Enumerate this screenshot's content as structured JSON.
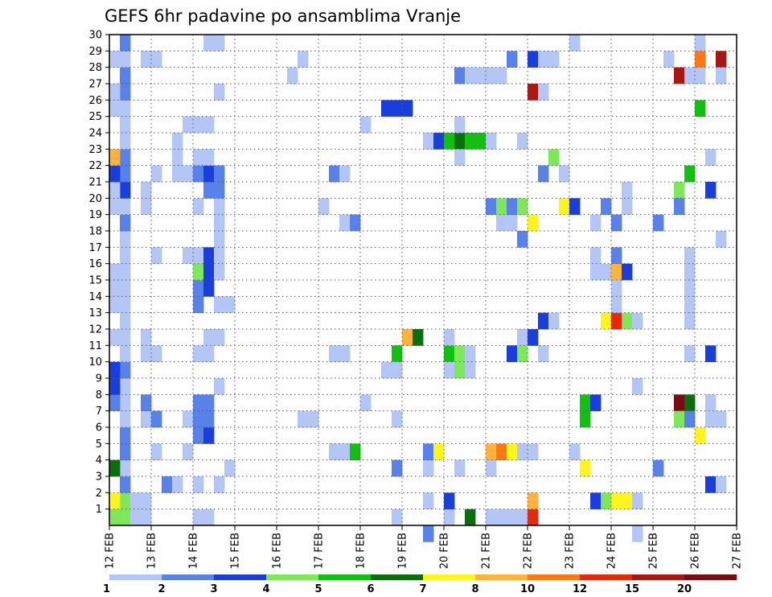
{
  "chart_data": {
    "type": "heatmap",
    "title": "GEFS 6hr padavine po ansamblima Vranje",
    "xlabel": "",
    "ylabel": "",
    "x_tick_labels": [
      "12 FEB",
      "13 FEB",
      "14 FEB",
      "15 FEB",
      "16 FEB",
      "17 FEB",
      "18 FEB",
      "19 FEB",
      "20 FEB",
      "21 FEB",
      "22 FEB",
      "23 FEB",
      "24 FEB",
      "25 FEB",
      "26 FEB",
      "27 FEB"
    ],
    "y_tick_labels": [
      "1",
      "2",
      "3",
      "4",
      "5",
      "6",
      "7",
      "8",
      "9",
      "10",
      "11",
      "12",
      "13",
      "14",
      "15",
      "16",
      "17",
      "18",
      "19",
      "20",
      "21",
      "22",
      "23",
      "24",
      "25",
      "26",
      "27",
      "28",
      "29",
      "30"
    ],
    "xlim": [
      0,
      15
    ],
    "ylim": [
      0,
      30
    ],
    "time_step_hours": 6,
    "grid": "dotted",
    "colorbar": {
      "position": "bottom",
      "labels": [
        "1",
        "2",
        "3",
        "4",
        "5",
        "6",
        "7",
        "8",
        "10",
        "12",
        "15",
        "20"
      ],
      "colors": [
        "#b4c6f5",
        "#5882ea",
        "#1a3ede",
        "#7ee85a",
        "#12c012",
        "#0a6f0a",
        "#fff51e",
        "#ffb23c",
        "#ff7814",
        "#e8280a",
        "#a81812",
        "#780e12"
      ]
    },
    "cells": [
      [
        1,
        0.5,
        4
      ],
      [
        1,
        0.5,
        3
      ],
      [
        1,
        1.5,
        3
      ],
      [
        1,
        2.5,
        1
      ],
      [
        1,
        3.5,
        0
      ],
      [
        1,
        4.5,
        1
      ],
      [
        1,
        5.5,
        1
      ],
      [
        1,
        6.5,
        0
      ],
      [
        1,
        7.5,
        0
      ],
      [
        1,
        8.5,
        0
      ],
      [
        1,
        9.5,
        1
      ],
      [
        1,
        10.5,
        0
      ],
      [
        1,
        11.5,
        0
      ],
      [
        1,
        12.5,
        0
      ],
      [
        1,
        13.5,
        0
      ],
      [
        1,
        14.5,
        0
      ],
      [
        1,
        15.5,
        0
      ],
      [
        1,
        16.5,
        0
      ],
      [
        1,
        17.5,
        0
      ],
      [
        1,
        18.5,
        1
      ],
      [
        1,
        19.5,
        0
      ],
      [
        1,
        20.5,
        2
      ],
      [
        1,
        21.5,
        1
      ],
      [
        1,
        22.5,
        1
      ],
      [
        1,
        23.5,
        0
      ],
      [
        1,
        24.5,
        0
      ],
      [
        1,
        25.5,
        0
      ],
      [
        1,
        26.5,
        1
      ],
      [
        1,
        27.5,
        1
      ],
      [
        1,
        28.5,
        0
      ],
      [
        1,
        29.5,
        1
      ],
      [
        0,
        1.5,
        6
      ],
      [
        0,
        0.5,
        3
      ],
      [
        0,
        3.5,
        5
      ],
      [
        0,
        7.5,
        1
      ],
      [
        0,
        8.5,
        2
      ],
      [
        0,
        9.5,
        2
      ],
      [
        0,
        11.5,
        0
      ],
      [
        0,
        13.5,
        0
      ],
      [
        0,
        14.5,
        0
      ],
      [
        0,
        15.5,
        0
      ],
      [
        0,
        19.5,
        0
      ],
      [
        0,
        20.5,
        0
      ],
      [
        0,
        21.5,
        2
      ],
      [
        0,
        22.5,
        7
      ],
      [
        0,
        26.5,
        0
      ],
      [
        0,
        28.5,
        0
      ],
      [
        0,
        25.5,
        0
      ],
      [
        2,
        0.5,
        0
      ],
      [
        2,
        1.5,
        0
      ],
      [
        3,
        0.5,
        0
      ],
      [
        3,
        1.5,
        0
      ],
      [
        3,
        6.5,
        0
      ],
      [
        3,
        7.5,
        1
      ],
      [
        3,
        10.5,
        0
      ],
      [
        3,
        11.5,
        0
      ],
      [
        3,
        19.5,
        0
      ],
      [
        3,
        20.5,
        0
      ],
      [
        3,
        28.5,
        0
      ],
      [
        4,
        4.5,
        0
      ],
      [
        4,
        6.5,
        1
      ],
      [
        4,
        21.5,
        0
      ],
      [
        4,
        10.5,
        0
      ],
      [
        4,
        16.5,
        0
      ],
      [
        4,
        28.5,
        0
      ],
      [
        5,
        2.5,
        1
      ],
      [
        6,
        2.5,
        0
      ],
      [
        6,
        21.5,
        0
      ],
      [
        6,
        22.5,
        0
      ],
      [
        6,
        23.5,
        0
      ],
      [
        7,
        21.5,
        0
      ],
      [
        7,
        4.5,
        0
      ],
      [
        7,
        6.5,
        0
      ],
      [
        7,
        16.5,
        0
      ],
      [
        7,
        24.5,
        0
      ],
      [
        8,
        0.5,
        0
      ],
      [
        8,
        2.5,
        0
      ],
      [
        8,
        5.5,
        1
      ],
      [
        8,
        6.5,
        1
      ],
      [
        8,
        7.5,
        1
      ],
      [
        8,
        13.5,
        1
      ],
      [
        8,
        14.5,
        1
      ],
      [
        8,
        15.5,
        3
      ],
      [
        8,
        10.5,
        0
      ],
      [
        8,
        16.5,
        0
      ],
      [
        8,
        19.5,
        0
      ],
      [
        8,
        21.5,
        1
      ],
      [
        8,
        22.5,
        0
      ],
      [
        8,
        24.5,
        0
      ],
      [
        9,
        0.5,
        0
      ],
      [
        9,
        5.5,
        2
      ],
      [
        9,
        6.5,
        1
      ],
      [
        9,
        7.5,
        1
      ],
      [
        9,
        10.5,
        0
      ],
      [
        9,
        11.5,
        0
      ],
      [
        9,
        14.5,
        2
      ],
      [
        9,
        15.5,
        2
      ],
      [
        9,
        16.5,
        2
      ],
      [
        9,
        20.5,
        1
      ],
      [
        9,
        21.5,
        2
      ],
      [
        9,
        22.5,
        0
      ],
      [
        9,
        24.5,
        0
      ],
      [
        9,
        29.5,
        0
      ],
      [
        10,
        2.5,
        0
      ],
      [
        10,
        8.5,
        0
      ],
      [
        10,
        11.5,
        0
      ],
      [
        10,
        13.5,
        0
      ],
      [
        10,
        15.5,
        0
      ],
      [
        10,
        16.5,
        0
      ],
      [
        10,
        17.5,
        0
      ],
      [
        10,
        18.5,
        0
      ],
      [
        10,
        19.5,
        0
      ],
      [
        10,
        20.5,
        1
      ],
      [
        10,
        21.5,
        1
      ],
      [
        10,
        26.5,
        0
      ],
      [
        10,
        29.5,
        0
      ],
      [
        11,
        3.5,
        0
      ],
      [
        11,
        13.5,
        0
      ],
      [
        17,
        27.5,
        0
      ],
      [
        18,
        6.5,
        0
      ],
      [
        18,
        28.5,
        0
      ],
      [
        19,
        6.5,
        0
      ],
      [
        20,
        19.5,
        0
      ],
      [
        21,
        4.5,
        0
      ],
      [
        21,
        10.5,
        0
      ],
      [
        21,
        21.5,
        1
      ],
      [
        22,
        4.5,
        0
      ],
      [
        22,
        10.5,
        0
      ],
      [
        22,
        18.5,
        0
      ],
      [
        22,
        21.5,
        0
      ],
      [
        23,
        4.5,
        4
      ],
      [
        23,
        18.5,
        1
      ],
      [
        24,
        7.5,
        0
      ],
      [
        24,
        24.5,
        0
      ],
      [
        26,
        9.5,
        0
      ],
      [
        26,
        25.5,
        2
      ],
      [
        27,
        10.5,
        4
      ],
      [
        27,
        25.5,
        2
      ],
      [
        27,
        0.5,
        0
      ],
      [
        27,
        3.5,
        1
      ],
      [
        27,
        9.5,
        0
      ],
      [
        27,
        6.5,
        0
      ],
      [
        28,
        11.5,
        7
      ],
      [
        28,
        25.5,
        2
      ],
      [
        29,
        11.5,
        5
      ],
      [
        30,
        1.5,
        0
      ],
      [
        30,
        3.5,
        0
      ],
      [
        30,
        23.5,
        0
      ],
      [
        30,
        4.5,
        1
      ],
      [
        30,
        -0.5,
        1
      ],
      [
        31,
        4.5,
        6
      ],
      [
        31,
        23.5,
        2
      ],
      [
        32,
        0.5,
        0
      ],
      [
        32,
        1.5,
        2
      ],
      [
        32,
        10.5,
        4
      ],
      [
        32,
        9.5,
        0
      ],
      [
        32,
        11.5,
        0
      ],
      [
        32,
        23.5,
        4
      ],
      [
        33,
        3.5,
        0
      ],
      [
        33,
        9.5,
        3
      ],
      [
        33,
        10.5,
        3
      ],
      [
        33,
        23.5,
        5
      ],
      [
        33,
        22.5,
        0
      ],
      [
        33,
        24.5,
        0
      ],
      [
        33,
        27.5,
        1
      ],
      [
        34,
        0.5,
        5
      ],
      [
        34,
        23.5,
        4
      ],
      [
        34,
        9.5,
        0
      ],
      [
        34,
        10.5,
        0
      ],
      [
        34,
        27.5,
        0
      ],
      [
        35,
        23.5,
        4
      ],
      [
        35,
        27.5,
        0
      ],
      [
        36,
        3.5,
        0
      ],
      [
        36,
        0.5,
        0
      ],
      [
        36,
        4.5,
        7
      ],
      [
        36,
        19.5,
        1
      ],
      [
        36,
        23.5,
        0
      ],
      [
        36,
        27.5,
        0
      ],
      [
        37,
        4.5,
        8
      ],
      [
        37,
        0.5,
        0
      ],
      [
        37,
        18.5,
        0
      ],
      [
        37,
        19.5,
        3
      ],
      [
        37,
        27.5,
        0
      ],
      [
        38,
        4.5,
        6
      ],
      [
        38,
        0.5,
        0
      ],
      [
        38,
        10.5,
        2
      ],
      [
        38,
        18.5,
        0
      ],
      [
        38,
        19.5,
        1
      ],
      [
        38,
        28.5,
        1
      ],
      [
        39,
        0.5,
        0
      ],
      [
        39,
        11.5,
        0
      ],
      [
        39,
        4.5,
        0
      ],
      [
        39,
        10.5,
        3
      ],
      [
        39,
        17.5,
        1
      ],
      [
        39,
        19.5,
        3
      ],
      [
        39,
        23.5,
        0
      ],
      [
        40,
        0.5,
        9
      ],
      [
        40,
        1.5,
        7
      ],
      [
        40,
        4.5,
        0
      ],
      [
        40,
        11.5,
        2
      ],
      [
        40,
        18.5,
        6
      ],
      [
        40,
        26.5,
        10
      ],
      [
        40,
        28.5,
        2
      ],
      [
        41,
        10.5,
        0
      ],
      [
        41,
        12.5,
        2
      ],
      [
        41,
        26.5,
        0
      ],
      [
        41,
        21.5,
        1
      ],
      [
        41,
        28.5,
        0
      ],
      [
        42,
        12.5,
        0
      ],
      [
        42,
        22.5,
        3
      ],
      [
        42,
        28.5,
        0
      ],
      [
        43,
        19.5,
        6
      ],
      [
        43,
        21.5,
        0
      ],
      [
        44,
        4.5,
        0
      ],
      [
        44,
        19.5,
        2
      ],
      [
        44,
        29.5,
        0
      ],
      [
        45,
        7.5,
        4
      ],
      [
        45,
        6.5,
        4
      ],
      [
        45,
        3.5,
        6
      ],
      [
        46,
        7.5,
        2
      ],
      [
        46,
        16.5,
        0
      ],
      [
        46,
        1.5,
        2
      ],
      [
        46,
        15.5,
        0
      ],
      [
        46,
        18.5,
        0
      ],
      [
        47,
        1.5,
        3
      ],
      [
        47,
        15.5,
        0
      ],
      [
        47,
        19.5,
        1
      ],
      [
        47,
        12.5,
        6
      ],
      [
        48,
        12.5,
        9
      ],
      [
        48,
        15.5,
        7
      ],
      [
        48,
        18.5,
        1
      ],
      [
        48,
        16.5,
        1
      ],
      [
        48,
        13.5,
        0
      ],
      [
        48,
        14.5,
        0
      ],
      [
        48,
        1.5,
        6
      ],
      [
        49,
        1.5,
        6
      ],
      [
        49,
        12.5,
        3
      ],
      [
        49,
        15.5,
        2
      ],
      [
        49,
        19.5,
        0
      ],
      [
        49,
        20.5,
        0
      ],
      [
        50,
        12.5,
        0
      ],
      [
        50,
        1.5,
        0
      ],
      [
        50,
        8.5,
        0
      ],
      [
        50,
        -0.5,
        0
      ],
      [
        52,
        3.5,
        1
      ],
      [
        52,
        18.5,
        1
      ],
      [
        53,
        28.5,
        0
      ],
      [
        54,
        7.5,
        11
      ],
      [
        54,
        6.5,
        3
      ],
      [
        54,
        20.5,
        3
      ],
      [
        54,
        19.5,
        1
      ],
      [
        54,
        27.5,
        10
      ],
      [
        55,
        7.5,
        5
      ],
      [
        55,
        6.5,
        1
      ],
      [
        55,
        10.5,
        0
      ],
      [
        55,
        21.5,
        4
      ],
      [
        55,
        13.5,
        0
      ],
      [
        55,
        12.5,
        0
      ],
      [
        55,
        14.5,
        0
      ],
      [
        55,
        15.5,
        0
      ],
      [
        55,
        16.5,
        0
      ],
      [
        55,
        27.5,
        0
      ],
      [
        56,
        5.5,
        6
      ],
      [
        56,
        25.5,
        4
      ],
      [
        56,
        28.5,
        8
      ],
      [
        56,
        27.5,
        0
      ],
      [
        56,
        29.5,
        0
      ],
      [
        57,
        10.5,
        2
      ],
      [
        57,
        7.5,
        0
      ],
      [
        57,
        6.5,
        0
      ],
      [
        57,
        2.5,
        2
      ],
      [
        57,
        20.5,
        2
      ],
      [
        57,
        22.5,
        0
      ],
      [
        58,
        28.5,
        10
      ],
      [
        58,
        17.5,
        0
      ],
      [
        58,
        27.5,
        0
      ],
      [
        58,
        6.5,
        0
      ],
      [
        58,
        2.5,
        0
      ]
    ]
  }
}
